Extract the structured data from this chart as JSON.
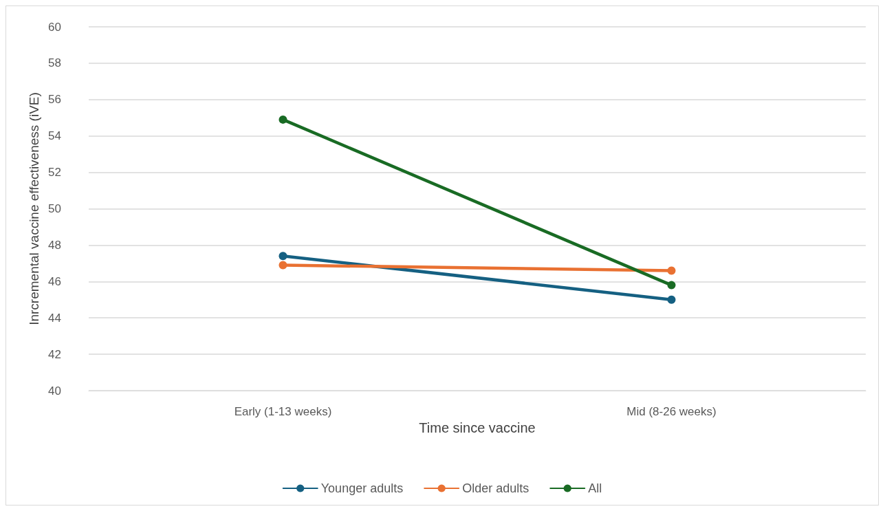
{
  "chart_data": {
    "type": "line",
    "xlabel": "Time since vaccine",
    "ylabel": "Inrcremental vaccine effectiveness (iVE)",
    "categories": [
      "Early (1-13 weeks)",
      "Mid (8-26 weeks)"
    ],
    "series": [
      {
        "name": "Younger adults",
        "color": "#156082",
        "values": [
          47.4,
          45.0
        ]
      },
      {
        "name": "Older adults",
        "color": "#e97132",
        "values": [
          46.9,
          46.6
        ]
      },
      {
        "name": "All",
        "color": "#196b24",
        "values": [
          54.9,
          45.8
        ]
      }
    ],
    "ylim": [
      40,
      60
    ],
    "yticks": [
      40,
      42,
      44,
      46,
      48,
      50,
      52,
      54,
      56,
      58,
      60
    ],
    "grid": "y",
    "legend": "bottom",
    "marker": "circle",
    "line_style": "solid"
  }
}
